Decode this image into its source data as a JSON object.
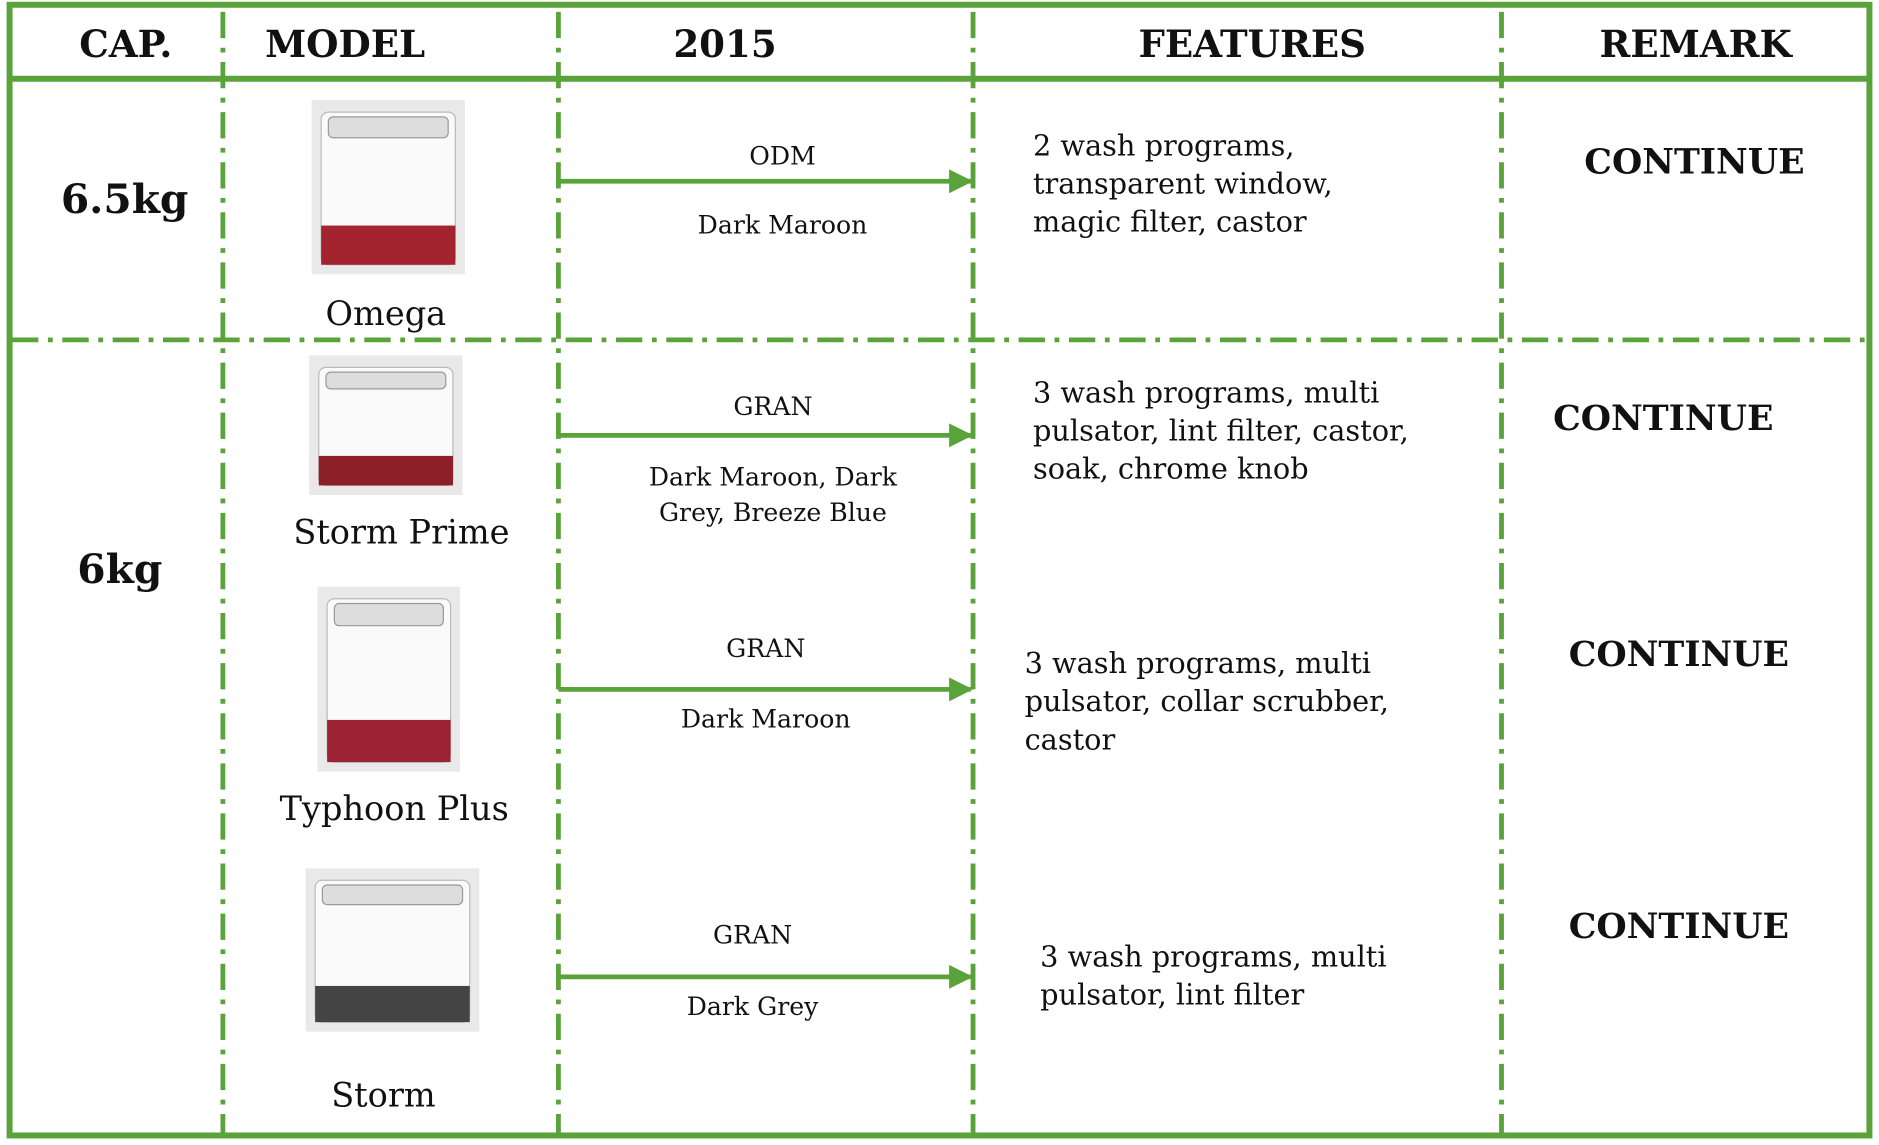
{
  "header": [
    "CAP.",
    "MODEL",
    "2015",
    "FEATURES",
    "REMARK"
  ],
  "groups": [
    {
      "capacity": "6.5kg",
      "models": [
        {
          "name": "Omega",
          "source": "ODM",
          "colors": [
            "Dark Maroon"
          ],
          "features": [
            "2 wash programs,",
            "transparent window,",
            "magic filter, castor"
          ],
          "remark": "CONTINUE"
        }
      ]
    },
    {
      "capacity": "6kg",
      "models": [
        {
          "name": "Storm Prime",
          "source": "GRAN",
          "colors": [
            "Dark Maroon, Dark",
            "Grey, Breeze Blue"
          ],
          "features": [
            "3 wash programs, multi",
            "pulsator, lint filter, castor,",
            "soak, chrome knob"
          ],
          "remark": "CONTINUE"
        },
        {
          "name": "Typhoon Plus",
          "source": "GRAN",
          "colors": [
            "Dark Maroon"
          ],
          "features": [
            "3 wash programs, multi",
            "pulsator, collar scrubber,",
            "castor"
          ],
          "remark": "CONTINUE"
        },
        {
          "name": "Storm",
          "source": "GRAN",
          "colors": [
            "Dark Grey"
          ],
          "features": [
            "3 wash programs, multi",
            "pulsator, lint filter"
          ],
          "remark": "CONTINUE"
        }
      ]
    }
  ]
}
